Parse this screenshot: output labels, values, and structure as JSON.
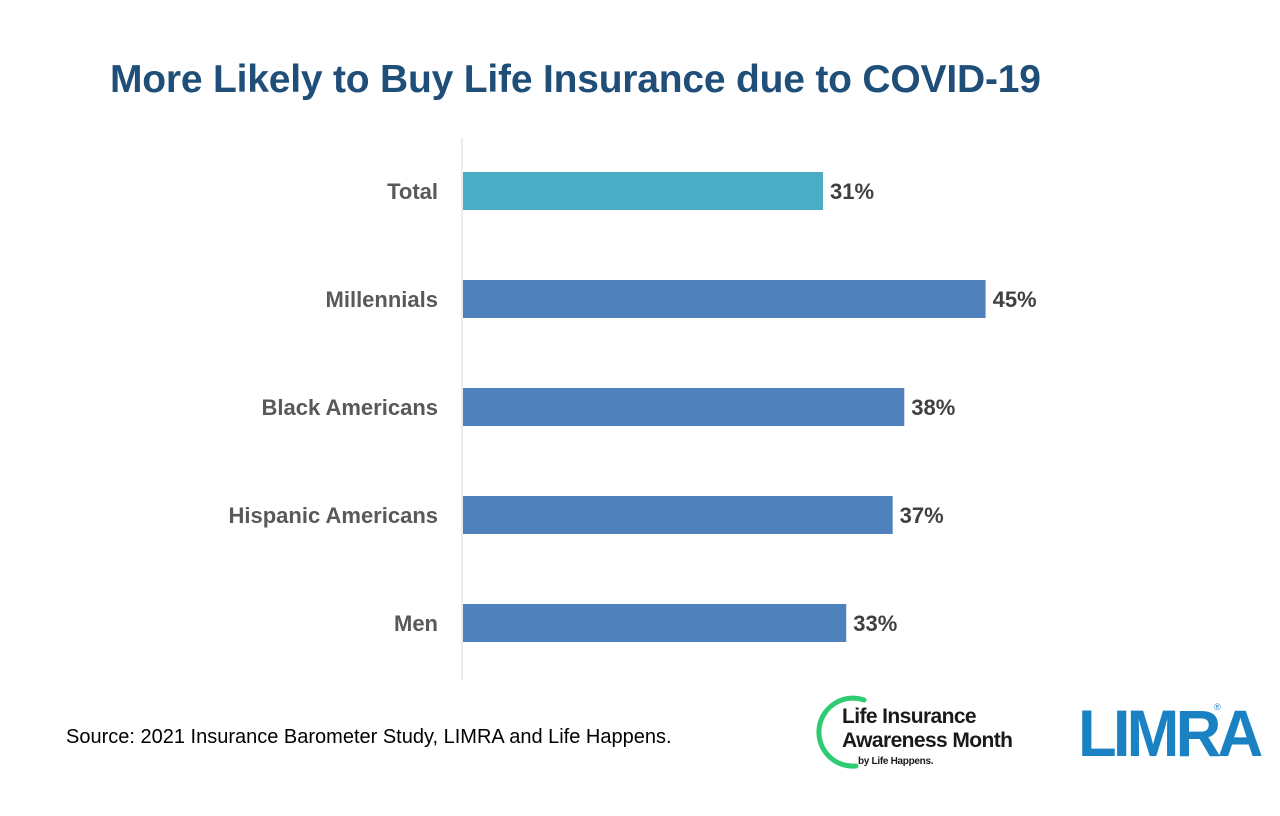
{
  "title": "More Likely to Buy Life Insurance due to COVID-19",
  "source": "Source: 2021 Insurance Barometer Study, LIMRA and Life Happens.",
  "chart_data": {
    "type": "bar",
    "orientation": "horizontal",
    "categories": [
      "Total",
      "Millennials",
      "Black Americans",
      "Hispanic Americans",
      "Men"
    ],
    "values": [
      31,
      45,
      38,
      37,
      33
    ],
    "value_labels": [
      "31%",
      "45%",
      "38%",
      "37%",
      "33%"
    ],
    "unit": "%",
    "xlim": [
      0,
      62
    ],
    "colors": {
      "highlight": "#4bacc6",
      "default": "#4f81bd",
      "axis": "#d9d9d9"
    },
    "highlight_category": "Total",
    "grid": false,
    "legend": "none"
  },
  "logos": {
    "life_insurance_awareness_month": {
      "line1": "Life Insurance",
      "line2": "Awareness Month",
      "byline": "by Life Happens.",
      "ring_color": "#2ecc71"
    },
    "limra": {
      "text": "LIMRA",
      "registered": "®",
      "color": "#1a82c3"
    }
  }
}
